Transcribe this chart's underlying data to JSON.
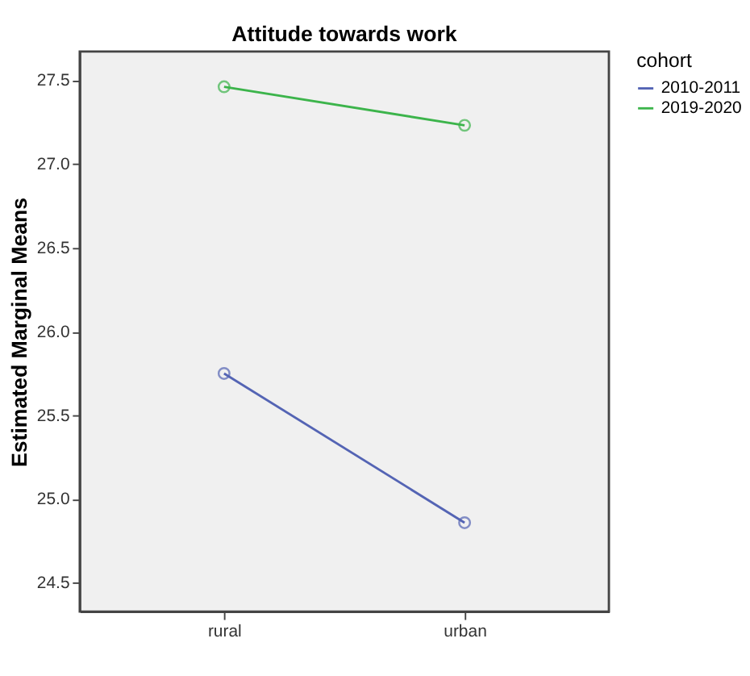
{
  "chart_data": {
    "type": "line",
    "title": "Attitude towards work",
    "ylabel": "Estimated Marginal Means",
    "legend_title": "cohort",
    "categories": [
      "rural",
      "urban"
    ],
    "series": [
      {
        "name": "2010-2011",
        "color": "#5464b4",
        "values": [
          25.75,
          24.86
        ]
      },
      {
        "name": "2019-2020",
        "color": "#3cb44b",
        "values": [
          27.46,
          27.23
        ]
      }
    ],
    "ylim": [
      24.33,
      27.67
    ],
    "yticks": [
      {
        "value": 24.5,
        "label": "24.5"
      },
      {
        "value": 25.0,
        "label": "25.0"
      },
      {
        "value": 25.5,
        "label": "25.5"
      },
      {
        "value": 26.0,
        "label": "26.0"
      },
      {
        "value": 26.5,
        "label": "26.5"
      },
      {
        "value": 27.0,
        "label": "27.0"
      },
      {
        "value": 27.5,
        "label": "27.5"
      }
    ],
    "grid": false,
    "legend": "top right",
    "marker": "circle",
    "line_style": "solid"
  }
}
